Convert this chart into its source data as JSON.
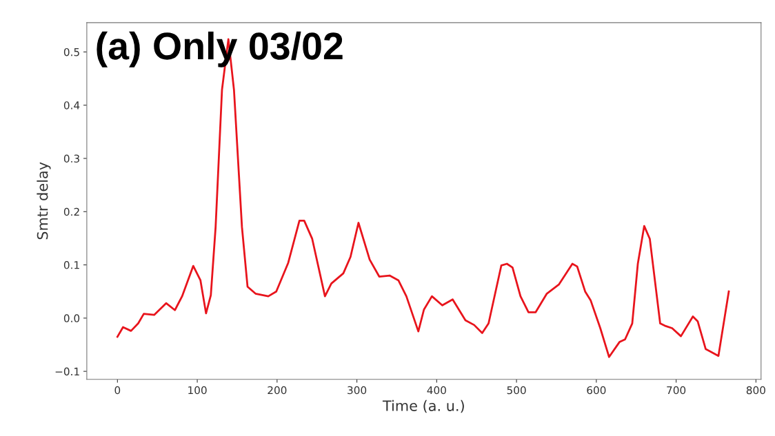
{
  "chart_data": {
    "type": "line",
    "title": "(a) Only 03/02",
    "xlabel": "Time (a. u.)",
    "ylabel": "Smtr delay",
    "series": [
      {
        "color": "#e8141c",
        "x": [
          0,
          7,
          17,
          26,
          33,
          46,
          61,
          72,
          81,
          95,
          104,
          111,
          117,
          123,
          131,
          139,
          146,
          156,
          163,
          173,
          189,
          199,
          214,
          228,
          234,
          244,
          260,
          268,
          283,
          292,
          302,
          316,
          328,
          341,
          352,
          362,
          377,
          384,
          394,
          407,
          420,
          436,
          447,
          457,
          465,
          481,
          488,
          495,
          505,
          515,
          524,
          538,
          553,
          570,
          576,
          586,
          593,
          605,
          616,
          629,
          636,
          645,
          652,
          660,
          667,
          680,
          687,
          695,
          706,
          721,
          727,
          737,
          753,
          766
        ],
        "values": [
          -0.035,
          -0.017,
          -0.024,
          -0.01,
          0.008,
          0.006,
          0.028,
          0.015,
          0.041,
          0.098,
          0.071,
          0.009,
          0.043,
          0.171,
          0.429,
          0.524,
          0.429,
          0.171,
          0.059,
          0.046,
          0.041,
          0.05,
          0.104,
          0.183,
          0.183,
          0.149,
          0.041,
          0.065,
          0.084,
          0.115,
          0.179,
          0.11,
          0.078,
          0.08,
          0.071,
          0.041,
          -0.025,
          0.016,
          0.041,
          0.024,
          0.035,
          -0.004,
          -0.013,
          -0.028,
          -0.01,
          0.099,
          0.102,
          0.095,
          0.041,
          0.011,
          0.011,
          0.046,
          0.063,
          0.102,
          0.097,
          0.05,
          0.033,
          -0.019,
          -0.073,
          -0.045,
          -0.04,
          -0.01,
          0.102,
          0.173,
          0.149,
          -0.01,
          -0.015,
          -0.019,
          -0.034,
          0.003,
          -0.006,
          -0.058,
          -0.071,
          0.05
        ]
      }
    ],
    "xlim": [
      -38.4,
      806.4
    ],
    "xticks": [
      0,
      100,
      200,
      300,
      400,
      500,
      600,
      700,
      800
    ],
    "ylim": [
      -0.115,
      0.555
    ],
    "yticks": [
      {
        "value": -0.1,
        "label": "−0.1"
      },
      {
        "value": 0,
        "label": "0.0"
      },
      {
        "value": 0.1,
        "label": "0.1"
      },
      {
        "value": 0.2,
        "label": "0.2"
      },
      {
        "value": 0.3,
        "label": "0.3"
      },
      {
        "value": 0.4,
        "label": "0.4"
      },
      {
        "value": 0.5,
        "label": "0.5"
      }
    ],
    "grid": false,
    "legend": false,
    "marker": "none",
    "line_style": "solid"
  }
}
